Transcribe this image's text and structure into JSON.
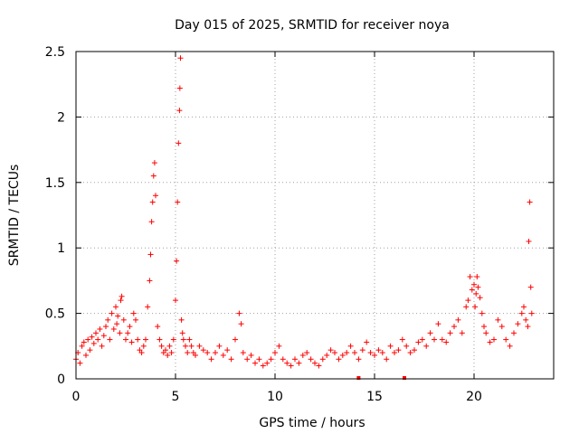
{
  "chart_data": {
    "type": "scatter",
    "title": "Day 015 of 2025, SRMTID for receiver noya",
    "xlabel": "GPS time / hours",
    "ylabel": "SRMTID / TECUs",
    "xlim": [
      0,
      24
    ],
    "ylim": [
      0,
      2.5
    ],
    "x_ticks": [
      0,
      5,
      10,
      15,
      20
    ],
    "x_tick_labels": [
      "0",
      "5",
      "10",
      "15",
      "20"
    ],
    "y_ticks": [
      0,
      0.5,
      1,
      1.5,
      2,
      2.5
    ],
    "y_tick_labels": [
      "0",
      "0.5",
      "1",
      "1.5",
      "2",
      "2.5"
    ],
    "grid": true,
    "marker": "plus",
    "color": "#ff0000",
    "series": [
      {
        "name": "SRMTID",
        "x": [
          0.0,
          0.1,
          0.2,
          0.3,
          0.4,
          0.5,
          0.6,
          0.7,
          0.8,
          0.9,
          1.0,
          1.1,
          1.2,
          1.3,
          1.4,
          1.5,
          1.6,
          1.7,
          1.8,
          1.9,
          2.0,
          2.05,
          2.1,
          2.2,
          2.25,
          2.3,
          2.4,
          2.5,
          2.6,
          2.7,
          2.8,
          2.9,
          3.0,
          3.1,
          3.2,
          3.3,
          3.4,
          3.5,
          3.6,
          3.7,
          3.75,
          3.8,
          3.85,
          3.9,
          3.95,
          4.0,
          4.1,
          4.2,
          4.3,
          4.4,
          4.5,
          4.6,
          4.7,
          4.8,
          4.9,
          5.0,
          5.05,
          5.1,
          5.15,
          5.2,
          5.22,
          5.25,
          5.3,
          5.35,
          5.4,
          5.5,
          5.6,
          5.7,
          5.8,
          5.9,
          6.0,
          6.2,
          6.4,
          6.6,
          6.8,
          7.0,
          7.2,
          7.4,
          7.6,
          7.8,
          8.0,
          8.2,
          8.3,
          8.4,
          8.6,
          8.8,
          9.0,
          9.2,
          9.4,
          9.6,
          9.8,
          10.0,
          10.2,
          10.4,
          10.6,
          10.8,
          11.0,
          11.2,
          11.4,
          11.6,
          11.8,
          12.0,
          12.2,
          12.4,
          12.6,
          12.8,
          13.0,
          13.2,
          13.4,
          13.6,
          13.8,
          14.0,
          14.2,
          14.4,
          14.6,
          14.8,
          15.0,
          15.2,
          15.4,
          15.6,
          15.8,
          16.0,
          16.2,
          16.4,
          16.6,
          16.8,
          17.0,
          17.2,
          17.4,
          17.6,
          17.8,
          18.0,
          18.2,
          18.4,
          18.6,
          18.8,
          19.0,
          19.2,
          19.4,
          19.6,
          19.7,
          19.8,
          19.9,
          20.0,
          20.05,
          20.1,
          20.15,
          20.2,
          20.3,
          20.4,
          20.5,
          20.6,
          20.8,
          21.0,
          21.2,
          21.4,
          21.6,
          21.8,
          22.0,
          22.2,
          22.4,
          22.5,
          22.6,
          22.7,
          22.75,
          22.8,
          22.85,
          22.9
        ],
        "y": [
          0.15,
          0.2,
          0.12,
          0.25,
          0.28,
          0.18,
          0.3,
          0.22,
          0.32,
          0.27,
          0.35,
          0.3,
          0.38,
          0.25,
          0.33,
          0.4,
          0.45,
          0.3,
          0.5,
          0.38,
          0.55,
          0.42,
          0.48,
          0.35,
          0.6,
          0.63,
          0.45,
          0.3,
          0.35,
          0.4,
          0.28,
          0.5,
          0.45,
          0.3,
          0.22,
          0.2,
          0.25,
          0.3,
          0.55,
          0.75,
          0.95,
          1.2,
          1.35,
          1.55,
          1.65,
          1.4,
          0.4,
          0.3,
          0.25,
          0.2,
          0.22,
          0.18,
          0.25,
          0.2,
          0.3,
          0.6,
          0.9,
          1.35,
          1.8,
          2.05,
          2.22,
          2.45,
          0.45,
          0.35,
          0.3,
          0.25,
          0.2,
          0.3,
          0.25,
          0.2,
          0.18,
          0.25,
          0.22,
          0.2,
          0.15,
          0.2,
          0.25,
          0.18,
          0.22,
          0.15,
          0.3,
          0.5,
          0.42,
          0.2,
          0.15,
          0.18,
          0.12,
          0.15,
          0.1,
          0.12,
          0.15,
          0.2,
          0.25,
          0.15,
          0.12,
          0.1,
          0.15,
          0.12,
          0.18,
          0.2,
          0.15,
          0.12,
          0.1,
          0.15,
          0.18,
          0.22,
          0.2,
          0.15,
          0.18,
          0.2,
          0.25,
          0.2,
          0.15,
          0.22,
          0.28,
          0.2,
          0.18,
          0.22,
          0.2,
          0.15,
          0.25,
          0.2,
          0.22,
          0.3,
          0.25,
          0.2,
          0.22,
          0.28,
          0.3,
          0.25,
          0.35,
          0.3,
          0.42,
          0.3,
          0.28,
          0.35,
          0.4,
          0.45,
          0.35,
          0.55,
          0.6,
          0.78,
          0.68,
          0.72,
          0.55,
          0.65,
          0.78,
          0.7,
          0.62,
          0.5,
          0.4,
          0.35,
          0.28,
          0.3,
          0.45,
          0.4,
          0.3,
          0.25,
          0.35,
          0.42,
          0.5,
          0.55,
          0.45,
          0.4,
          1.05,
          1.35,
          0.7,
          0.5
        ]
      }
    ],
    "ground_marks_x": [
      14.2,
      16.5
    ]
  }
}
